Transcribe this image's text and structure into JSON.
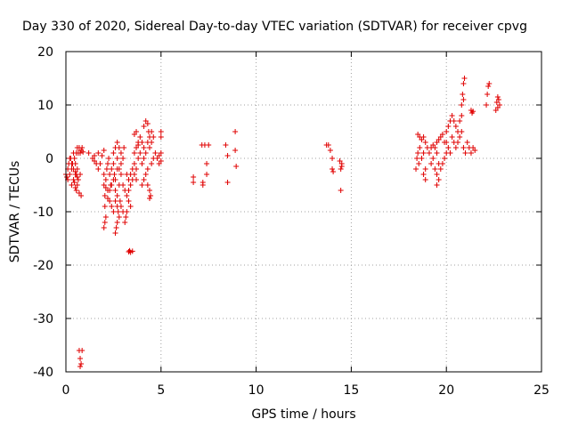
{
  "chart_data": {
    "type": "scatter",
    "title": "Day 330 of 2020, Sidereal Day-to-day VTEC variation (SDTVAR) for receiver cpvg",
    "xlabel": "GPS time / hours",
    "ylabel": "SDTVAR / TECUs",
    "xlim": [
      0,
      25
    ],
    "ylim": [
      -40,
      20
    ],
    "x_ticks": [
      0,
      5,
      10,
      15,
      20,
      25
    ],
    "y_ticks": [
      -40,
      -30,
      -20,
      -10,
      0,
      10,
      20
    ],
    "x_tick_labels": [
      "0",
      "5",
      "10",
      "15",
      "20",
      "25"
    ],
    "y_tick_labels": [
      "-40",
      "-30",
      "-20",
      "-10",
      "0",
      "10",
      "20"
    ],
    "grid": true,
    "marker": "+",
    "series": [
      {
        "name": "SDTVAR",
        "color": "#e00000",
        "points": [
          [
            0.0,
            -3
          ],
          [
            0.05,
            -3.5
          ],
          [
            0.1,
            -2
          ],
          [
            0.1,
            -4
          ],
          [
            0.15,
            -1
          ],
          [
            0.2,
            -3
          ],
          [
            0.25,
            0
          ],
          [
            0.3,
            -2
          ],
          [
            0.35,
            -1
          ],
          [
            0.4,
            1
          ],
          [
            0.45,
            0
          ],
          [
            0.5,
            -1
          ],
          [
            0.55,
            1
          ],
          [
            0.6,
            2
          ],
          [
            0.65,
            1
          ],
          [
            0.7,
            2
          ],
          [
            0.75,
            1
          ],
          [
            0.8,
            1.5
          ],
          [
            0.85,
            2
          ],
          [
            0.9,
            1.2
          ],
          [
            0.3,
            -5
          ],
          [
            0.4,
            -4
          ],
          [
            0.5,
            -5.5
          ],
          [
            0.55,
            -6
          ],
          [
            0.6,
            -5
          ],
          [
            0.7,
            -6.5
          ],
          [
            0.8,
            -7
          ],
          [
            0.5,
            -3
          ],
          [
            0.6,
            -2
          ],
          [
            0.45,
            -4.5
          ],
          [
            0.2,
            0
          ],
          [
            0.3,
            -1
          ],
          [
            0.4,
            -2
          ],
          [
            0.5,
            -2.5
          ],
          [
            0.55,
            -3
          ],
          [
            0.6,
            -3.5
          ],
          [
            0.65,
            -4
          ],
          [
            0.75,
            -3
          ],
          [
            0.7,
            -36
          ],
          [
            0.75,
            -37.5
          ],
          [
            0.8,
            -38.5
          ],
          [
            0.75,
            -39
          ],
          [
            0.85,
            -36
          ],
          [
            1.2,
            1
          ],
          [
            1.4,
            0
          ],
          [
            1.5,
            0.5
          ],
          [
            1.6,
            -1
          ],
          [
            1.7,
            -2
          ],
          [
            1.8,
            -1
          ],
          [
            1.9,
            0.5
          ],
          [
            2.0,
            1.5
          ],
          [
            1.7,
            1
          ],
          [
            1.5,
            -0.5
          ],
          [
            2.0,
            -3
          ],
          [
            2.0,
            -5
          ],
          [
            2.05,
            -7
          ],
          [
            2.05,
            -9
          ],
          [
            2.1,
            -11
          ],
          [
            2.05,
            -12
          ],
          [
            2.0,
            -13
          ],
          [
            2.1,
            -4
          ],
          [
            2.15,
            -2
          ],
          [
            2.2,
            -1
          ],
          [
            2.25,
            0
          ],
          [
            2.3,
            -3
          ],
          [
            2.35,
            -5
          ],
          [
            2.4,
            -2
          ],
          [
            2.5,
            -1
          ],
          [
            2.55,
            -3
          ],
          [
            2.6,
            -4
          ],
          [
            2.7,
            -2
          ],
          [
            2.2,
            -6
          ],
          [
            2.3,
            -8
          ],
          [
            2.4,
            -9
          ],
          [
            2.5,
            -10
          ],
          [
            2.1,
            -5.5
          ],
          [
            2.2,
            -7.5
          ],
          [
            2.3,
            -6
          ],
          [
            2.4,
            -5
          ],
          [
            2.5,
            -4
          ],
          [
            2.6,
            -6
          ],
          [
            2.7,
            -7
          ],
          [
            2.8,
            -5
          ],
          [
            2.9,
            -3
          ],
          [
            2.5,
            1
          ],
          [
            2.6,
            2
          ],
          [
            2.7,
            3
          ],
          [
            2.8,
            2
          ],
          [
            2.9,
            1
          ],
          [
            3.0,
            0
          ],
          [
            3.05,
            2
          ],
          [
            2.9,
            -1
          ],
          [
            2.8,
            -2
          ],
          [
            2.7,
            0
          ],
          [
            2.6,
            -8
          ],
          [
            2.7,
            -9
          ],
          [
            2.8,
            -11
          ],
          [
            2.7,
            -12
          ],
          [
            2.65,
            -13
          ],
          [
            2.6,
            -14
          ],
          [
            2.75,
            -10
          ],
          [
            2.85,
            -8
          ],
          [
            2.9,
            -9
          ],
          [
            3.0,
            -10
          ],
          [
            3.1,
            -12
          ],
          [
            3.15,
            -11
          ],
          [
            3.2,
            -10
          ],
          [
            3.3,
            -8
          ],
          [
            3.4,
            -9
          ],
          [
            3.0,
            -5
          ],
          [
            3.1,
            -6
          ],
          [
            3.2,
            -7
          ],
          [
            3.3,
            -6
          ],
          [
            3.4,
            -5
          ],
          [
            3.5,
            -4
          ],
          [
            3.3,
            -4
          ],
          [
            3.2,
            -3
          ],
          [
            3.4,
            -3
          ],
          [
            3.5,
            -2
          ],
          [
            3.6,
            -1
          ],
          [
            3.7,
            -2
          ],
          [
            3.8,
            0
          ],
          [
            3.9,
            1
          ],
          [
            4.0,
            -1
          ],
          [
            4.1,
            0
          ],
          [
            3.6,
            -3
          ],
          [
            3.7,
            -4
          ],
          [
            3.3,
            -17.5
          ],
          [
            3.35,
            -17.3
          ],
          [
            3.4,
            -17.6
          ],
          [
            3.5,
            -17.4
          ],
          [
            3.6,
            1
          ],
          [
            3.7,
            2
          ],
          [
            3.8,
            3
          ],
          [
            3.9,
            4
          ],
          [
            3.7,
            5
          ],
          [
            3.6,
            4.5
          ],
          [
            3.8,
            2.5
          ],
          [
            4.0,
            3
          ],
          [
            4.1,
            2
          ],
          [
            4.2,
            1
          ],
          [
            4.0,
            -5
          ],
          [
            4.1,
            -4
          ],
          [
            4.2,
            -3
          ],
          [
            4.3,
            -5
          ],
          [
            4.4,
            -6
          ],
          [
            4.45,
            -7
          ],
          [
            4.4,
            -7.5
          ],
          [
            4.3,
            -2
          ],
          [
            4.1,
            6
          ],
          [
            4.2,
            7
          ],
          [
            4.3,
            6.5
          ],
          [
            4.35,
            5
          ],
          [
            4.4,
            4
          ],
          [
            4.5,
            5
          ],
          [
            4.6,
            4
          ],
          [
            4.5,
            3
          ],
          [
            4.4,
            2
          ],
          [
            4.3,
            3
          ],
          [
            4.5,
            -1
          ],
          [
            4.6,
            0
          ],
          [
            4.7,
            1
          ],
          [
            4.8,
            0
          ],
          [
            4.9,
            -1
          ],
          [
            5.0,
            -0.5
          ],
          [
            5.0,
            1
          ],
          [
            4.9,
            0.5
          ],
          [
            5.0,
            4
          ],
          [
            5.0,
            5
          ],
          [
            6.7,
            -3.5
          ],
          [
            6.7,
            -4.5
          ],
          [
            7.15,
            2.5
          ],
          [
            7.2,
            -4.5
          ],
          [
            7.2,
            -5
          ],
          [
            7.3,
            2.5
          ],
          [
            7.4,
            -1
          ],
          [
            7.4,
            -3
          ],
          [
            7.5,
            2.5
          ],
          [
            8.4,
            2.5
          ],
          [
            8.5,
            -4.5
          ],
          [
            8.5,
            0.5
          ],
          [
            8.9,
            5
          ],
          [
            8.9,
            1.5
          ],
          [
            8.95,
            -1.5
          ],
          [
            13.7,
            2.5
          ],
          [
            13.8,
            2.5
          ],
          [
            13.9,
            1.5
          ],
          [
            14.0,
            0
          ],
          [
            14.0,
            -2
          ],
          [
            14.05,
            -2.5
          ],
          [
            14.4,
            -0.5
          ],
          [
            14.5,
            -1
          ],
          [
            14.45,
            -2
          ],
          [
            14.5,
            -1.5
          ],
          [
            14.45,
            -6
          ],
          [
            18.4,
            -2
          ],
          [
            18.45,
            0
          ],
          [
            18.5,
            1
          ],
          [
            18.55,
            -1
          ],
          [
            18.6,
            2
          ],
          [
            18.7,
            0
          ],
          [
            18.8,
            1
          ],
          [
            18.5,
            4.5
          ],
          [
            18.6,
            4
          ],
          [
            18.7,
            3.5
          ],
          [
            18.8,
            4
          ],
          [
            18.9,
            3
          ],
          [
            19.0,
            2
          ],
          [
            19.1,
            1
          ],
          [
            19.2,
            -1
          ],
          [
            19.3,
            0
          ],
          [
            18.9,
            -2
          ],
          [
            18.8,
            -3
          ],
          [
            18.9,
            -4
          ],
          [
            19.2,
            2
          ],
          [
            19.3,
            2.5
          ],
          [
            19.4,
            2
          ],
          [
            19.5,
            3
          ],
          [
            19.6,
            3.5
          ],
          [
            19.7,
            4
          ],
          [
            19.8,
            4.5
          ],
          [
            19.9,
            3
          ],
          [
            19.5,
            1
          ],
          [
            19.6,
            -1
          ],
          [
            19.4,
            -2
          ],
          [
            19.5,
            -3
          ],
          [
            19.6,
            -4
          ],
          [
            19.5,
            -5
          ],
          [
            19.7,
            -2
          ],
          [
            19.8,
            -1
          ],
          [
            19.9,
            0
          ],
          [
            20.0,
            1
          ],
          [
            20.0,
            5
          ],
          [
            20.1,
            6
          ],
          [
            20.2,
            7
          ],
          [
            20.3,
            8
          ],
          [
            20.4,
            7
          ],
          [
            20.5,
            6
          ],
          [
            20.6,
            5
          ],
          [
            20.7,
            7
          ],
          [
            20.8,
            8
          ],
          [
            20.3,
            4
          ],
          [
            20.4,
            3
          ],
          [
            20.5,
            2
          ],
          [
            20.6,
            3
          ],
          [
            20.7,
            4
          ],
          [
            20.8,
            5
          ],
          [
            20.9,
            2
          ],
          [
            21.0,
            1
          ],
          [
            21.1,
            3
          ],
          [
            20.2,
            1
          ],
          [
            20.1,
            2
          ],
          [
            20.0,
            3
          ],
          [
            20.8,
            10
          ],
          [
            20.85,
            12
          ],
          [
            20.9,
            14
          ],
          [
            20.95,
            15
          ],
          [
            20.9,
            11
          ],
          [
            21.3,
            9
          ],
          [
            21.35,
            8.5
          ],
          [
            21.4,
            8.8
          ],
          [
            21.2,
            2
          ],
          [
            21.3,
            1
          ],
          [
            21.4,
            2
          ],
          [
            21.5,
            1.5
          ],
          [
            22.1,
            10
          ],
          [
            22.15,
            12
          ],
          [
            22.2,
            13.5
          ],
          [
            22.25,
            14
          ],
          [
            22.6,
            9
          ],
          [
            22.7,
            9.5
          ],
          [
            22.8,
            10
          ],
          [
            22.75,
            11
          ],
          [
            22.65,
            10.5
          ],
          [
            22.7,
            11.5
          ]
        ]
      }
    ]
  }
}
